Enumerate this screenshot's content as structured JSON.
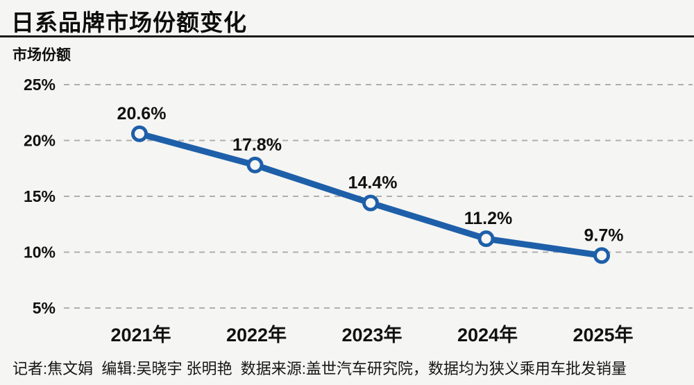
{
  "page": {
    "background": "#f5f5f3",
    "text_color": "#111111",
    "accent_blue": "#1e5fa9",
    "grid_color": "#aeaeae"
  },
  "header": {
    "title": "日系品牌市场份额变化"
  },
  "chart_data": {
    "type": "line",
    "title": "日系品牌市场份额变化",
    "ylabel": "市场份额",
    "xlabel": "",
    "categories": [
      "2021年",
      "2022年",
      "2023年",
      "2024年",
      "2025年"
    ],
    "series": [
      {
        "name": "日系品牌市场份额",
        "values": [
          20.6,
          17.8,
          14.4,
          11.2,
          9.7
        ],
        "data_labels": [
          "20.6%",
          "17.8%",
          "14.4%",
          "11.2%",
          "9.7%"
        ],
        "line_color": "#1e5fa9",
        "marker": "open-circle",
        "marker_fill": "#f7f7f5"
      }
    ],
    "yticks": [
      25,
      20,
      15,
      10,
      5
    ],
    "ytick_labels": [
      "25%",
      "20%",
      "15%",
      "10%",
      "5%"
    ],
    "ylim": [
      5,
      25
    ],
    "grid": "horizontal-dashed",
    "legend": "none"
  },
  "footer": {
    "credits": "记者:焦文娟  编辑:吴晓宇 张明艳  数据来源:盖世汽车研究院，数据均为狭义乘用车批发销量"
  }
}
